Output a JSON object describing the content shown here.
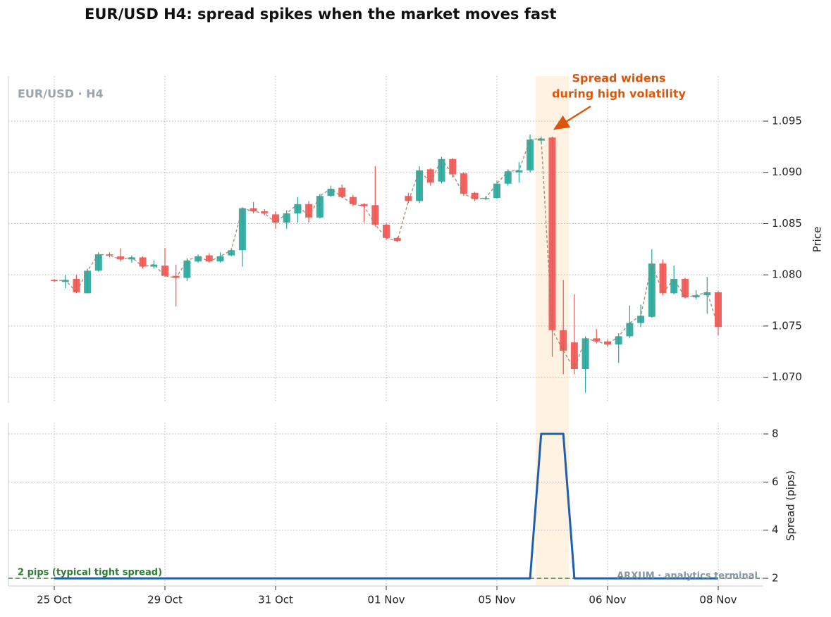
{
  "chart_data": [
    {
      "type": "candlestick",
      "title": "EUR/USD H4: spread spikes when the market moves fast",
      "panel_label": "EUR/USD · H4",
      "ylabel": "Price",
      "up_color": "#26a69a",
      "down_color": "#ef5350",
      "open": [
        1.0795,
        1.0793,
        1.0796,
        1.0782,
        1.0804,
        1.082,
        1.0818,
        1.0815,
        1.0817,
        1.0808,
        1.0809,
        1.0799,
        1.0797,
        1.0813,
        1.0819,
        1.0813,
        1.0819,
        1.0824,
        1.0865,
        1.0862,
        1.0859,
        1.0851,
        1.086,
        1.0869,
        1.0856,
        1.0877,
        1.0885,
        1.0876,
        1.0869,
        1.0868,
        1.0849,
        1.0836,
        1.0877,
        1.0872,
        1.0903,
        1.0891,
        1.0913,
        1.0899,
        1.088,
        1.0874,
        1.0875,
        1.0889,
        1.09,
        1.0902,
        1.0931,
        1.0934,
        1.0746,
        1.0734,
        1.0708,
        1.0738,
        1.0735,
        1.0732,
        1.074,
        1.0753,
        1.0759,
        1.0811,
        1.0782,
        1.0796,
        1.0778,
        1.078,
        1.0783
      ],
      "high": [
        1.0796,
        1.08,
        1.08,
        1.0806,
        1.0822,
        1.0822,
        1.0826,
        1.0819,
        1.0818,
        1.0814,
        1.0826,
        1.081,
        1.0816,
        1.082,
        1.0821,
        1.0822,
        1.0826,
        1.0866,
        1.0871,
        1.0864,
        1.0862,
        1.0863,
        1.0876,
        1.0872,
        1.0879,
        1.0887,
        1.0888,
        1.0878,
        1.087,
        1.0906,
        1.0851,
        1.0837,
        1.088,
        1.0906,
        1.0904,
        1.0915,
        1.0914,
        1.09,
        1.0881,
        1.0877,
        1.0892,
        1.0903,
        1.091,
        1.0937,
        1.0935,
        1.0935,
        1.0795,
        1.0781,
        1.074,
        1.0747,
        1.0737,
        1.0743,
        1.077,
        1.0771,
        1.0825,
        1.0815,
        1.0809,
        1.0797,
        1.0785,
        1.0798,
        1.0784
      ],
      "low": [
        1.0793,
        1.0787,
        1.0782,
        1.0782,
        1.0803,
        1.0817,
        1.0813,
        1.0812,
        1.0806,
        1.0806,
        1.0798,
        1.0769,
        1.0794,
        1.0812,
        1.0812,
        1.0812,
        1.0818,
        1.0808,
        1.086,
        1.0858,
        1.0845,
        1.0845,
        1.0851,
        1.0851,
        1.0855,
        1.0876,
        1.0875,
        1.0867,
        1.0851,
        1.0847,
        1.0834,
        1.0832,
        1.087,
        1.087,
        1.0887,
        1.0889,
        1.0895,
        1.0877,
        1.0872,
        1.0873,
        1.0874,
        1.0887,
        1.089,
        1.09,
        1.0929,
        1.072,
        1.0703,
        1.0703,
        1.0685,
        1.0733,
        1.073,
        1.0714,
        1.0738,
        1.0749,
        1.0758,
        1.078,
        1.0781,
        1.0777,
        1.0776,
        1.0762,
        1.0741
      ],
      "close": [
        1.0794,
        1.0795,
        1.0783,
        1.0804,
        1.082,
        1.0819,
        1.0815,
        1.0817,
        1.0808,
        1.081,
        1.0799,
        1.0797,
        1.0814,
        1.0818,
        1.0813,
        1.0818,
        1.0824,
        1.0865,
        1.0862,
        1.086,
        1.0851,
        1.086,
        1.0869,
        1.0856,
        1.0877,
        1.0884,
        1.0876,
        1.0869,
        1.0867,
        1.0849,
        1.0836,
        1.0833,
        1.0872,
        1.0902,
        1.089,
        1.0913,
        1.0898,
        1.0879,
        1.0874,
        1.0875,
        1.0889,
        1.0901,
        1.0902,
        1.0932,
        1.0933,
        1.0746,
        1.0726,
        1.0708,
        1.0738,
        1.0735,
        1.0732,
        1.074,
        1.0753,
        1.076,
        1.0811,
        1.0782,
        1.0796,
        1.0778,
        1.078,
        1.0783,
        1.0749
      ],
      "ylim": [
        1.0675,
        1.0994
      ],
      "yticks": [
        {
          "value": 1.07,
          "label": "1.070"
        },
        1.075,
        {
          "value": 1.08,
          "label": "1.080"
        },
        1.085,
        {
          "value": 1.09,
          "label": "1.090"
        },
        1.095
      ],
      "grid": true,
      "annotation": {
        "lines": [
          "Spread widens",
          "during high volatility"
        ],
        "color": "#d9560a"
      },
      "highlight_range": [
        44,
        46
      ]
    },
    {
      "type": "line",
      "ylabel": "Spread (pips)",
      "categories": [
        "25 Oct",
        null,
        null,
        null,
        null,
        null,
        null,
        null,
        null,
        null,
        "29 Oct",
        null,
        null,
        null,
        null,
        null,
        null,
        null,
        null,
        null,
        "31 Oct",
        null,
        null,
        null,
        null,
        null,
        null,
        null,
        null,
        null,
        "01 Nov",
        null,
        null,
        null,
        null,
        null,
        null,
        null,
        null,
        null,
        "05 Nov",
        null,
        null,
        null,
        null,
        null,
        null,
        null,
        null,
        null,
        "06 Nov",
        null,
        null,
        null,
        null,
        null,
        null,
        null,
        null,
        null,
        "08 Nov"
      ],
      "series": [
        {
          "color": "#1f5fad",
          "values": [
            2,
            2,
            2,
            2,
            2,
            2,
            2,
            2,
            2,
            2,
            2,
            2,
            2,
            2,
            2,
            2,
            2,
            2,
            2,
            2,
            2,
            2,
            2,
            2,
            2,
            2,
            2,
            2,
            2,
            2,
            2,
            2,
            2,
            2,
            2,
            2,
            2,
            2,
            2,
            2,
            2,
            2,
            2,
            2,
            8,
            8,
            8,
            2,
            2,
            2,
            2,
            2,
            2,
            2,
            2,
            2,
            2,
            2,
            2,
            2,
            2
          ]
        }
      ],
      "ylim": [
        1.68,
        8.47
      ],
      "yticks": [
        2,
        4,
        6,
        8
      ],
      "grid": true,
      "reference": {
        "value": 2,
        "label": "2 pips  (typical tight spread)",
        "color": "#2e7d32"
      },
      "watermark": "ARXUM · analytics terminal"
    }
  ]
}
